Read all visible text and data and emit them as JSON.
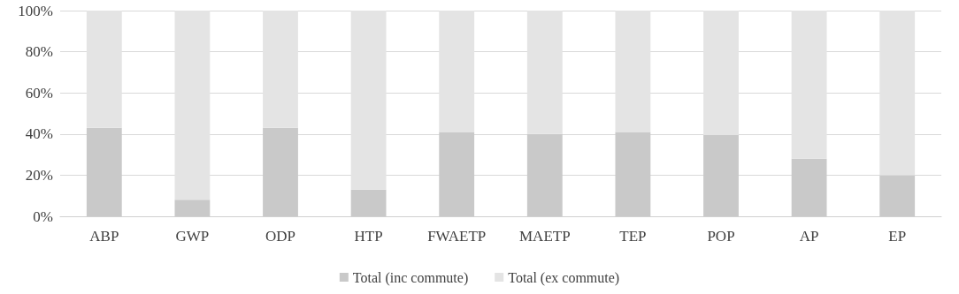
{
  "chart_data": {
    "type": "bar",
    "stacked": true,
    "categories": [
      "ABP",
      "GWP",
      "ODP",
      "HTP",
      "FWAETP",
      "MAETP",
      "TEP",
      "POP",
      "AP",
      "EP"
    ],
    "series": [
      {
        "name": "Total (inc commute)",
        "color": "#c9c9c9",
        "values": [
          43,
          8,
          43,
          13,
          41,
          40,
          41,
          39.5,
          28,
          20
        ]
      },
      {
        "name": "Total (ex commute)",
        "color": "#e4e4e4",
        "values": [
          57,
          92,
          57,
          87,
          59,
          60,
          59,
          60.5,
          72,
          80
        ]
      }
    ],
    "ylim": [
      0,
      100
    ],
    "yticks": [
      {
        "value": 0,
        "label": "0%"
      },
      {
        "value": 20,
        "label": "20%"
      },
      {
        "value": 40,
        "label": "40%"
      },
      {
        "value": 60,
        "label": "60%"
      },
      {
        "value": 80,
        "label": "80%"
      },
      {
        "value": 100,
        "label": "100%"
      }
    ],
    "grid": "y",
    "legend": "bottom"
  }
}
